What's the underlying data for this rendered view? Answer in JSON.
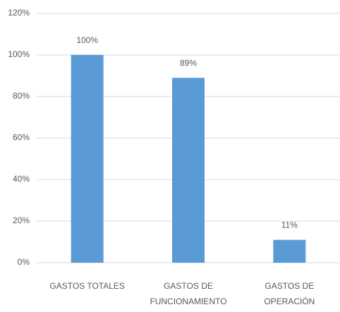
{
  "chart_data": {
    "type": "bar",
    "categories": [
      "GASTOS TOTALES",
      "GASTOS DE FUNCIONAMIENTO",
      "GASTOS DE OPERACIÓN"
    ],
    "values": [
      100,
      89,
      11
    ],
    "value_labels": [
      "100%",
      "89%",
      "11%"
    ],
    "color": "#5b9bd5",
    "ylim": [
      0,
      120
    ],
    "yticks": [
      {
        "value": 0,
        "label": "0%"
      },
      {
        "value": 20,
        "label": "20%"
      },
      {
        "value": 40,
        "label": "40%"
      },
      {
        "value": 60,
        "label": "60%"
      },
      {
        "value": 80,
        "label": "80%"
      },
      {
        "value": 100,
        "label": "100%"
      },
      {
        "value": 120,
        "label": "120%"
      }
    ],
    "grid": true
  }
}
